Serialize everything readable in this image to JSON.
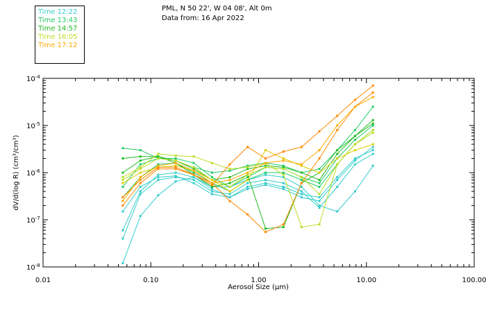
{
  "header": {
    "location": "PML, N 50 22', W 04 08', Alt 0m",
    "date_line": "Data from: 16 Apr 2022"
  },
  "chart_data": {
    "type": "line",
    "title": "PML, N 50 22', W 04 08', Alt 0m",
    "xlabel": "Aerosol Size (μm)",
    "ylabel": "dV/d(log R) (cm³/cm³)",
    "xscale": "log",
    "yscale": "log",
    "xlim": [
      0.01,
      100
    ],
    "ylim": [
      1e-08,
      0.0001
    ],
    "x_tick_labels": [
      {
        "value": 0.01,
        "label": "0.01"
      },
      {
        "value": 0.1,
        "label": "0.10"
      },
      {
        "value": 1,
        "label": "1.00"
      },
      {
        "value": 10,
        "label": "10.00"
      },
      {
        "value": 100,
        "label": "100.00"
      }
    ],
    "y_tick_labels": [
      {
        "value": 1e-08,
        "mantissa": "10",
        "exp": "-8"
      },
      {
        "value": 1e-07,
        "mantissa": "10",
        "exp": "-7"
      },
      {
        "value": 1e-06,
        "mantissa": "10",
        "exp": "-6"
      },
      {
        "value": 1e-05,
        "mantissa": "10",
        "exp": "-5"
      },
      {
        "value": 0.0001,
        "mantissa": "10",
        "exp": "-4"
      }
    ],
    "legend": [
      {
        "label": "Time 12:22",
        "color": "#33cccc"
      },
      {
        "label": "Time 13:43",
        "color": "#22cc66"
      },
      {
        "label": "Time 14:57",
        "color": "#22bb22"
      },
      {
        "label": "Time 16:05",
        "color": "#bbdd22"
      },
      {
        "label": "Time 17:12",
        "color": "#ffaa00"
      }
    ],
    "x": [
      0.055,
      0.08,
      0.117,
      0.17,
      0.25,
      0.37,
      0.54,
      0.79,
      1.16,
      1.7,
      2.5,
      3.66,
      5.36,
      7.85,
      11.5
    ],
    "series": [
      {
        "name": "12:22 a",
        "color": "#33cccc",
        "values": [
          1.2e-08,
          1.2e-07,
          3.3e-07,
          6.5e-07,
          8e-07,
          5e-07,
          5e-07,
          7e-07,
          9e-07,
          8e-07,
          5e-07,
          2e-07,
          1.5e-07,
          4e-07,
          1.4e-06
        ]
      },
      {
        "name": "12:22 b",
        "color": "#33cccc",
        "values": [
          4e-08,
          3.5e-07,
          7e-07,
          8e-07,
          7e-07,
          4e-07,
          3.5e-07,
          6e-07,
          7e-07,
          6e-07,
          4e-07,
          1.8e-07,
          5e-07,
          1.5e-06,
          2.5e-06
        ]
      },
      {
        "name": "12:22 c",
        "color": "#33cccc",
        "values": [
          6e-08,
          4e-07,
          9e-07,
          1e-06,
          8e-07,
          4.5e-07,
          3e-07,
          5e-07,
          6e-07,
          5e-07,
          3.5e-07,
          3e-07,
          8e-07,
          2e-06,
          3e-06
        ]
      },
      {
        "name": "12:22 d",
        "color": "#33cccc",
        "values": [
          1.5e-07,
          5e-07,
          8e-07,
          8.5e-07,
          6e-07,
          3.5e-07,
          3e-07,
          4.5e-07,
          5.5e-07,
          4.5e-07,
          3e-07,
          2.5e-07,
          7e-07,
          1.8e-06,
          3.5e-06
        ]
      },
      {
        "name": "13:43 a",
        "color": "#22cc66",
        "values": [
          3.3e-06,
          3e-06,
          2e-06,
          1.8e-06,
          1.3e-06,
          1e-06,
          1.1e-06,
          1.4e-06,
          1.6e-06,
          1.4e-06,
          1e-06,
          1.2e-06,
          3e-06,
          8e-06,
          2.5e-05
        ]
      },
      {
        "name": "13:43 b",
        "color": "#22cc66",
        "values": [
          5e-07,
          1.5e-06,
          2e-06,
          2e-06,
          1.6e-06,
          8e-07,
          5e-07,
          8e-07,
          1.3e-06,
          1.2e-06,
          8e-07,
          6e-07,
          2e-06,
          5e-06,
          1e-05
        ]
      },
      {
        "name": "13:43 c",
        "color": "#22cc66",
        "values": [
          3e-07,
          8e-07,
          1.5e-06,
          1.6e-06,
          1e-06,
          6e-07,
          4e-07,
          7e-07,
          1e-06,
          1e-06,
          7e-07,
          5e-07,
          1.5e-06,
          4e-06,
          8e-06
        ]
      },
      {
        "name": "14:57 a",
        "color": "#22bb22",
        "values": [
          1e-06,
          1.8e-06,
          2.2e-06,
          1.6e-06,
          9e-07,
          5e-07,
          6e-07,
          9e-07,
          6.5e-08,
          7e-08,
          6e-07,
          1e-06,
          3e-06,
          6e-06,
          1.1e-05
        ]
      },
      {
        "name": "14:57 b",
        "color": "#22bb22",
        "values": [
          2e-06,
          2.2e-06,
          2.2e-06,
          1.8e-06,
          1.2e-06,
          7e-07,
          8e-07,
          1.2e-06,
          1.4e-06,
          1.3e-06,
          1e-06,
          7e-07,
          2.5e-06,
          6e-06,
          1.3e-05
        ]
      },
      {
        "name": "16:05 a",
        "color": "#bbdd22",
        "values": [
          8e-07,
          1.3e-06,
          2.5e-06,
          2.3e-06,
          2.2e-06,
          1.6e-06,
          1.2e-06,
          1.3e-06,
          1.6e-06,
          9e-07,
          7e-08,
          8e-08,
          1.5e-06,
          4e-06,
          8e-06
        ]
      },
      {
        "name": "16:05 b",
        "color": "#bbdd22",
        "values": [
          7e-07,
          1.2e-06,
          2e-06,
          1.8e-06,
          1.3e-06,
          7e-07,
          5e-07,
          9e-07,
          1.3e-06,
          1.2e-06,
          8e-07,
          3.5e-07,
          1.5e-06,
          4e-06,
          7e-06
        ]
      },
      {
        "name": "16:05 c",
        "color": "#ddcc00",
        "values": [
          6e-07,
          1e-06,
          1.3e-06,
          1.4e-06,
          1.1e-06,
          7e-07,
          4e-07,
          7e-07,
          3e-06,
          2e-06,
          1.4e-06,
          1e-06,
          2e-06,
          3e-06,
          4e-06
        ]
      },
      {
        "name": "17:12 a",
        "color": "#ff8800",
        "values": [
          3e-07,
          7e-07,
          1.3e-06,
          1.3e-06,
          9e-07,
          5.5e-07,
          1.5e-06,
          3.5e-06,
          2e-06,
          2.8e-06,
          3.5e-06,
          7.5e-06,
          1.6e-05,
          3.5e-05,
          7e-05
        ]
      },
      {
        "name": "17:12 b",
        "color": "#ff8800",
        "values": [
          2e-07,
          6e-07,
          1.2e-06,
          1.2e-06,
          9e-07,
          6e-07,
          2.5e-07,
          1.3e-07,
          5.5e-08,
          8e-08,
          6e-07,
          2e-06,
          8e-06,
          2.5e-05,
          5e-05
        ]
      },
      {
        "name": "17:12 c",
        "color": "#ffaa00",
        "values": [
          2.5e-07,
          8e-07,
          1.4e-06,
          1.6e-06,
          1.1e-06,
          6e-07,
          7e-07,
          1e-06,
          1.6e-06,
          1.8e-06,
          1.5e-06,
          3e-06,
          1e-05,
          2.5e-05,
          4e-05
        ]
      }
    ]
  }
}
